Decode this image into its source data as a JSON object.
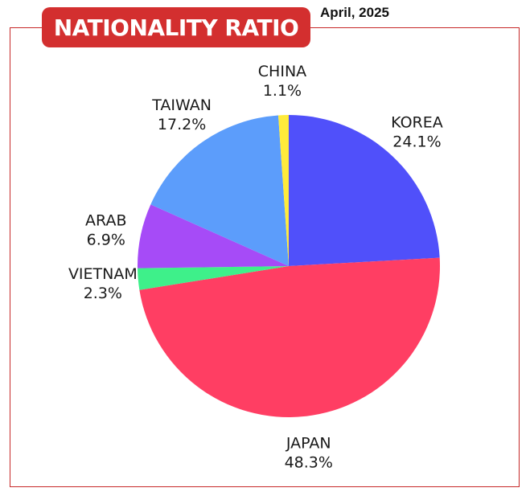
{
  "header": {
    "title": "NATIONALITY RATIO",
    "date": "April, 2025"
  },
  "chart_data": {
    "type": "pie",
    "title": "NATIONALITY RATIO",
    "subtitle": "April, 2025",
    "slices": [
      {
        "label": "KOREA",
        "value": 24.1,
        "display": "24.1%",
        "color": "#5050fa"
      },
      {
        "label": "JAPAN",
        "value": 48.3,
        "display": "48.3%",
        "color": "#ff3e63"
      },
      {
        "label": "VIETNAM",
        "value": 2.3,
        "display": "2.3%",
        "color": "#3ef08a"
      },
      {
        "label": "ARAB",
        "value": 6.9,
        "display": "6.9%",
        "color": "#a64bf7"
      },
      {
        "label": "TAIWAN",
        "value": 17.2,
        "display": "17.2%",
        "color": "#5c9dfb"
      },
      {
        "label": "CHINA",
        "value": 1.1,
        "display": "1.1%",
        "color": "#ffeb3b"
      }
    ],
    "start": "12 o'clock",
    "direction": "clockwise",
    "legend": "none",
    "labels": "outside"
  }
}
